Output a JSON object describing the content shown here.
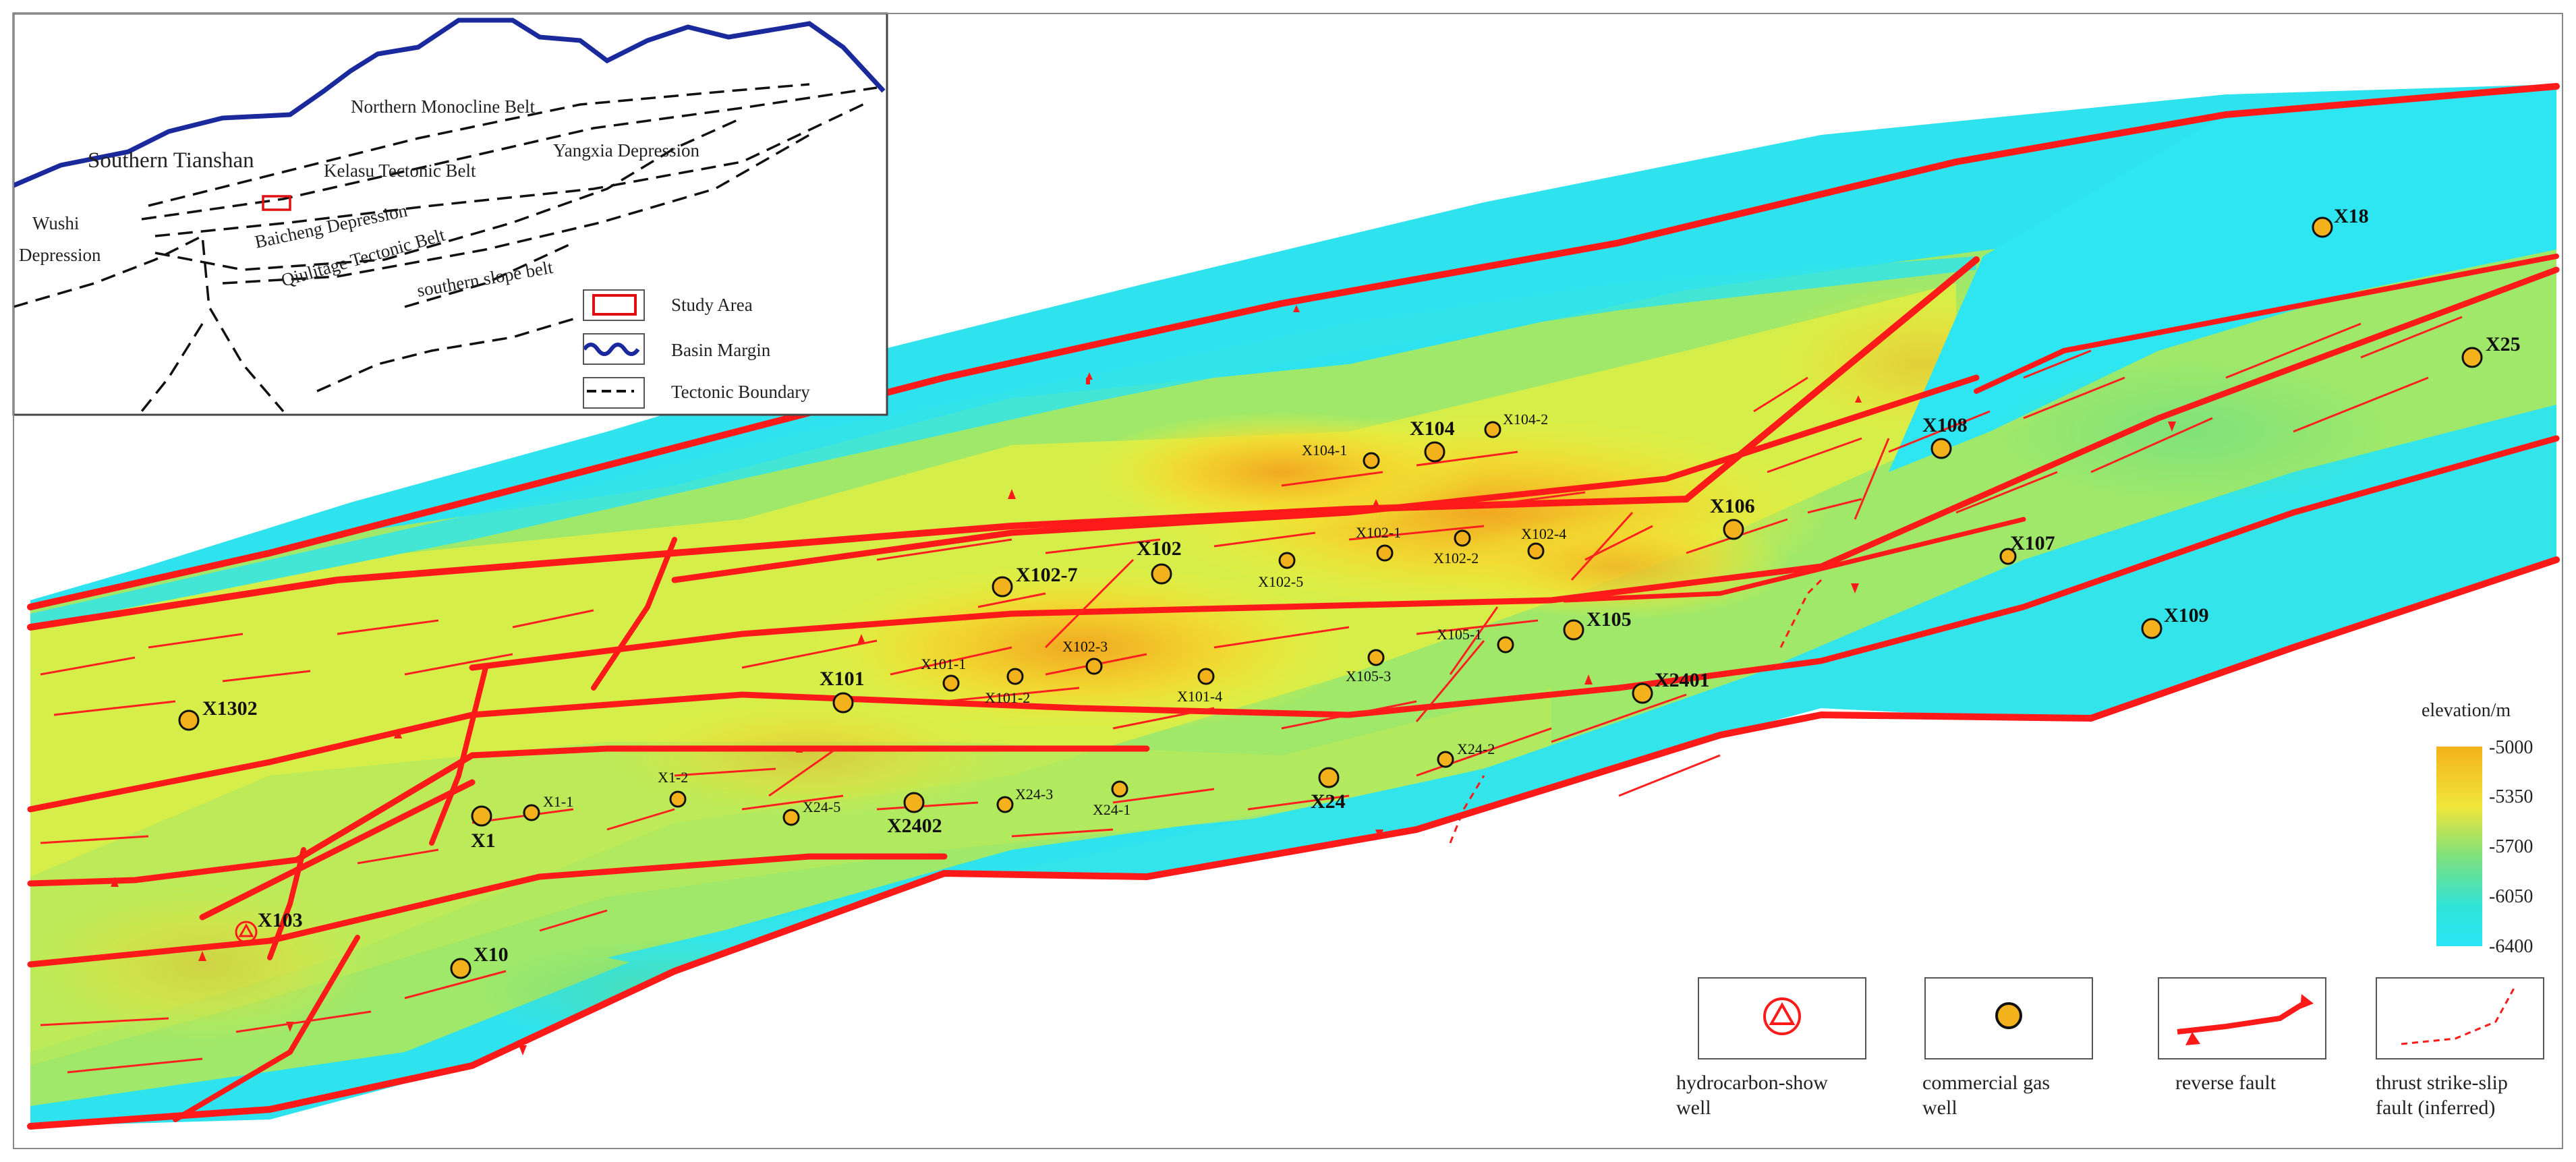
{
  "colors": {
    "fault": "#ff1a1a",
    "well_fill": "#f3b21c",
    "basin_margin": "#1a2a9c",
    "elev_high": "#f2b21a",
    "elev_low": "#27e6f2",
    "map_bg": "#28e3f0"
  },
  "inset": {
    "regions": [
      "Southern Tianshan",
      "Northern Monocline Belt",
      "Kelasu Tectonic Belt",
      "Yangxia Depression",
      "Baicheng Depression",
      "Qiulitage Tectonic Belt",
      "southern slope belt",
      "Wushi",
      "Depression"
    ],
    "legend": [
      {
        "label": "Study Area",
        "icon": "study-area-rect"
      },
      {
        "label": "Basin Margin",
        "icon": "basin-margin-line"
      },
      {
        "label": "Tectonic Boundary",
        "icon": "tectonic-boundary-dashed"
      }
    ]
  },
  "colorbar": {
    "title": "elevation/m",
    "ticks": [
      "-5000",
      "-5350",
      "-5700",
      "-6050",
      "-6400"
    ],
    "range": [
      -6400,
      -5000
    ]
  },
  "legend": [
    {
      "label_line1": "hydrocarbon-show",
      "label_line2": "well",
      "icon": "hydrocarbon-show-well-icon"
    },
    {
      "label_line1": "commercial gas",
      "label_line2": "well",
      "icon": "commercial-gas-well-icon"
    },
    {
      "label_line1": "reverse fault",
      "label_line2": "",
      "icon": "reverse-fault-icon"
    },
    {
      "label_line1": "thrust strike-slip",
      "label_line2": "fault (inferred)",
      "icon": "strike-slip-fault-icon"
    }
  ],
  "wells_big": [
    "X18",
    "X25",
    "X104",
    "X108",
    "X106",
    "X107",
    "X102",
    "X102-7",
    "X105",
    "X109",
    "X1302",
    "X101",
    "X2401",
    "X24",
    "X2402",
    "X1",
    "X10",
    "X103"
  ],
  "wells_small": [
    "X104-1",
    "X104-2",
    "X102-1",
    "X102-4",
    "X102-2",
    "X102-5",
    "X105-1",
    "X101-1",
    "X102-3",
    "X101-2",
    "X101-4",
    "X105-3",
    "X24-2",
    "X1-2",
    "X1-1",
    "X24-5",
    "X24-3",
    "X24-1"
  ]
}
